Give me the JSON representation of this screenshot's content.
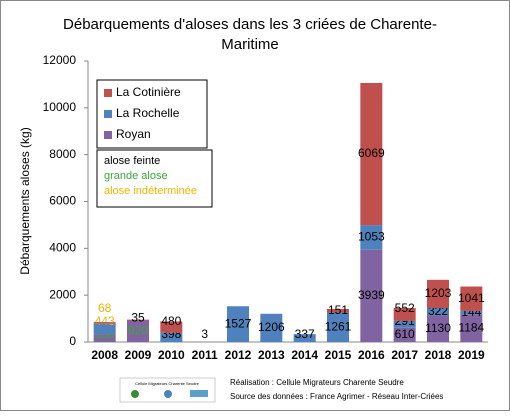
{
  "chart_data": {
    "type": "stacked_bar",
    "title_lines": [
      "Débarquements d'aloses dans les 3 criées de Charente-",
      "Maritime"
    ],
    "y_label": "Débarquements aloses (kg)",
    "categories": [
      "2008",
      "2009",
      "2010",
      "2011",
      "2012",
      "2013",
      "2014",
      "2015",
      "2016",
      "2017",
      "2018",
      "2019"
    ],
    "series": [
      {
        "name": "Royan",
        "color": "#8064a2",
        "values": [
          338,
          920,
          null,
          null,
          null,
          null,
          null,
          null,
          3939,
          610,
          1130,
          1184
        ],
        "label_colors": [
          "#3aa83a",
          "#3aa83a",
          null,
          null,
          null,
          null,
          null,
          null,
          "#000000",
          "#000000",
          "#000000",
          "#000000"
        ]
      },
      {
        "name": "La Rochelle",
        "color": "#4f81bd",
        "values": [
          443,
          null,
          398,
          null,
          1527,
          1206,
          337,
          1261,
          1053,
          291,
          322,
          144
        ],
        "label_colors": [
          "#f0b400",
          null,
          "#000000",
          null,
          "#000000",
          "#000000",
          "#000000",
          "#000000",
          "#000000",
          "#000000",
          "#000000",
          "#000000"
        ]
      },
      {
        "name": "La Cotinière",
        "color": "#c0504d",
        "values": [
          68,
          35,
          480,
          3,
          null,
          null,
          null,
          151,
          6069,
          552,
          1203,
          1041
        ],
        "label_colors": [
          "#f0b400",
          "#000000",
          "#000000",
          "#000000",
          null,
          null,
          null,
          "#000000",
          "#000000",
          "#000000",
          "#000000",
          "#000000"
        ]
      }
    ],
    "label_legend": [
      {
        "name": "alose feinte",
        "color": "#000000"
      },
      {
        "name": "grande alose",
        "color": "#3aa83a"
      },
      {
        "name": "alose indéterminée",
        "color": "#f0b400"
      }
    ],
    "ylim": [
      0,
      12000
    ],
    "yticks": [
      0,
      2000,
      4000,
      6000,
      8000,
      10000,
      12000
    ],
    "grid": false
  },
  "footer": {
    "logo_text": "Cellule Migrateurs Charente Seudre",
    "lines": [
      "Réalisation : Cellule  Migrateurs  Charente  Seudre",
      "Source des données  : France Agrimer  - Réseau Inter-Criées"
    ]
  }
}
